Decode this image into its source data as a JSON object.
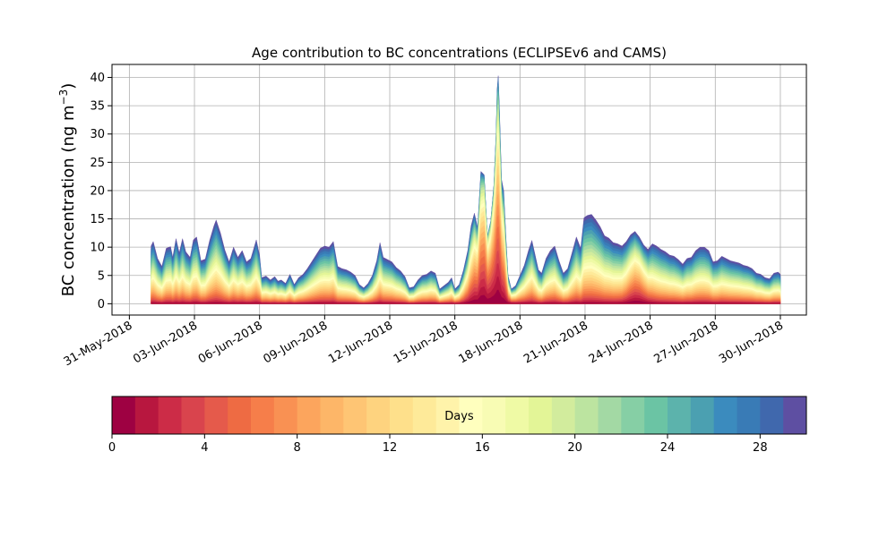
{
  "chart_data": {
    "type": "area",
    "title": "Age contribution to BC concentrations (ECLIPSEv6 and CAMS)",
    "ylabel": "BC concentration (ng m",
    "ylabel_superscript": "−3",
    "ylabel_close": ")",
    "xlabel": "",
    "xlim": [
      -0.8,
      31.2
    ],
    "ylim": [
      -2,
      42.3
    ],
    "grid": true,
    "x_ticks": [
      {
        "value": 0,
        "label": "31-May-2018"
      },
      {
        "value": 3,
        "label": "03-Jun-2018"
      },
      {
        "value": 6,
        "label": "06-Jun-2018"
      },
      {
        "value": 9,
        "label": "09-Jun-2018"
      },
      {
        "value": 12,
        "label": "12-Jun-2018"
      },
      {
        "value": 15,
        "label": "15-Jun-2018"
      },
      {
        "value": 18,
        "label": "18-Jun-2018"
      },
      {
        "value": 21,
        "label": "21-Jun-2018"
      },
      {
        "value": 24,
        "label": "24-Jun-2018"
      },
      {
        "value": 27,
        "label": "27-Jun-2018"
      },
      {
        "value": 30,
        "label": "30-Jun-2018"
      }
    ],
    "y_ticks": [
      0,
      5,
      10,
      15,
      20,
      25,
      30,
      35,
      40
    ],
    "x_unit": "days since 31-May-2018",
    "total_concentration": [
      [
        1.0,
        10.2
      ],
      [
        1.1,
        11.0
      ],
      [
        1.3,
        8.0
      ],
      [
        1.5,
        6.6
      ],
      [
        1.7,
        9.8
      ],
      [
        1.9,
        10.1
      ],
      [
        2.0,
        8.2
      ],
      [
        2.15,
        11.5
      ],
      [
        2.3,
        9.0
      ],
      [
        2.45,
        11.5
      ],
      [
        2.6,
        9.2
      ],
      [
        2.8,
        8.2
      ],
      [
        2.95,
        11.3
      ],
      [
        3.1,
        11.8
      ],
      [
        3.3,
        7.6
      ],
      [
        3.5,
        7.9
      ],
      [
        3.7,
        11.2
      ],
      [
        3.9,
        13.8
      ],
      [
        4.0,
        14.8
      ],
      [
        4.2,
        12.5
      ],
      [
        4.4,
        9.5
      ],
      [
        4.6,
        7.4
      ],
      [
        4.8,
        10.0
      ],
      [
        5.0,
        8.2
      ],
      [
        5.2,
        9.4
      ],
      [
        5.4,
        7.4
      ],
      [
        5.6,
        8.0
      ],
      [
        5.85,
        11.3
      ],
      [
        6.0,
        8.6
      ],
      [
        6.1,
        4.6
      ],
      [
        6.3,
        4.9
      ],
      [
        6.5,
        4.2
      ],
      [
        6.7,
        4.8
      ],
      [
        6.85,
        4.0
      ],
      [
        7.0,
        4.2
      ],
      [
        7.2,
        3.6
      ],
      [
        7.4,
        5.2
      ],
      [
        7.6,
        3.4
      ],
      [
        7.8,
        4.6
      ],
      [
        8.0,
        5.2
      ],
      [
        8.2,
        6.2
      ],
      [
        8.5,
        8.0
      ],
      [
        8.8,
        9.8
      ],
      [
        9.0,
        10.2
      ],
      [
        9.2,
        10.0
      ],
      [
        9.4,
        11.0
      ],
      [
        9.6,
        6.6
      ],
      [
        9.8,
        6.2
      ],
      [
        10.0,
        6.0
      ],
      [
        10.2,
        5.6
      ],
      [
        10.4,
        5.0
      ],
      [
        10.6,
        3.4
      ],
      [
        10.8,
        2.8
      ],
      [
        11.0,
        3.6
      ],
      [
        11.2,
        5.0
      ],
      [
        11.4,
        7.6
      ],
      [
        11.55,
        10.8
      ],
      [
        11.7,
        8.2
      ],
      [
        11.9,
        7.8
      ],
      [
        12.1,
        7.4
      ],
      [
        12.3,
        6.4
      ],
      [
        12.5,
        5.8
      ],
      [
        12.7,
        4.8
      ],
      [
        12.9,
        2.8
      ],
      [
        13.1,
        3.0
      ],
      [
        13.3,
        4.2
      ],
      [
        13.5,
        5.0
      ],
      [
        13.7,
        5.2
      ],
      [
        13.9,
        5.8
      ],
      [
        14.1,
        5.4
      ],
      [
        14.3,
        2.6
      ],
      [
        14.5,
        3.2
      ],
      [
        14.7,
        3.8
      ],
      [
        14.85,
        4.6
      ],
      [
        15.0,
        2.6
      ],
      [
        15.2,
        3.4
      ],
      [
        15.4,
        6.0
      ],
      [
        15.6,
        9.5
      ],
      [
        15.75,
        13.8
      ],
      [
        15.9,
        16.0
      ],
      [
        16.05,
        13.5
      ],
      [
        16.2,
        23.4
      ],
      [
        16.35,
        22.8
      ],
      [
        16.5,
        12.0
      ],
      [
        16.65,
        14.5
      ],
      [
        16.8,
        21.0
      ],
      [
        16.9,
        30.0
      ],
      [
        16.95,
        38.0
      ],
      [
        17.0,
        40.3
      ],
      [
        17.05,
        35.0
      ],
      [
        17.15,
        22.0
      ],
      [
        17.25,
        20.0
      ],
      [
        17.35,
        12.0
      ],
      [
        17.45,
        5.0
      ],
      [
        17.6,
        2.6
      ],
      [
        17.8,
        3.2
      ],
      [
        18.0,
        5.0
      ],
      [
        18.2,
        6.8
      ],
      [
        18.4,
        9.5
      ],
      [
        18.55,
        11.2
      ],
      [
        18.7,
        8.6
      ],
      [
        18.85,
        6.0
      ],
      [
        19.0,
        5.4
      ],
      [
        19.2,
        8.0
      ],
      [
        19.4,
        9.4
      ],
      [
        19.6,
        10.2
      ],
      [
        19.8,
        7.6
      ],
      [
        20.0,
        5.4
      ],
      [
        20.2,
        6.2
      ],
      [
        20.4,
        9.0
      ],
      [
        20.6,
        11.8
      ],
      [
        20.8,
        9.8
      ],
      [
        20.95,
        15.2
      ],
      [
        21.1,
        15.6
      ],
      [
        21.3,
        15.8
      ],
      [
        21.5,
        14.8
      ],
      [
        21.7,
        13.6
      ],
      [
        21.9,
        12.0
      ],
      [
        22.1,
        11.6
      ],
      [
        22.3,
        10.8
      ],
      [
        22.5,
        10.6
      ],
      [
        22.7,
        10.2
      ],
      [
        22.9,
        11.0
      ],
      [
        23.1,
        12.2
      ],
      [
        23.3,
        12.8
      ],
      [
        23.5,
        11.8
      ],
      [
        23.7,
        10.4
      ],
      [
        23.9,
        9.6
      ],
      [
        24.1,
        10.6
      ],
      [
        24.3,
        10.2
      ],
      [
        24.5,
        9.6
      ],
      [
        24.7,
        9.2
      ],
      [
        24.9,
        8.6
      ],
      [
        25.1,
        8.4
      ],
      [
        25.3,
        7.8
      ],
      [
        25.5,
        7.0
      ],
      [
        25.7,
        8.0
      ],
      [
        25.9,
        8.2
      ],
      [
        26.1,
        9.4
      ],
      [
        26.3,
        10.0
      ],
      [
        26.5,
        10.0
      ],
      [
        26.7,
        9.4
      ],
      [
        26.9,
        7.4
      ],
      [
        27.1,
        7.6
      ],
      [
        27.3,
        8.4
      ],
      [
        27.5,
        8.0
      ],
      [
        27.7,
        7.6
      ],
      [
        27.9,
        7.4
      ],
      [
        28.1,
        7.2
      ],
      [
        28.3,
        6.8
      ],
      [
        28.5,
        6.6
      ],
      [
        28.7,
        6.2
      ],
      [
        28.9,
        5.4
      ],
      [
        29.1,
        5.2
      ],
      [
        29.3,
        4.6
      ],
      [
        29.5,
        4.4
      ],
      [
        29.7,
        5.4
      ],
      [
        29.9,
        5.6
      ],
      [
        30.0,
        5.2
      ]
    ],
    "age_bands": {
      "days": [
        0,
        1,
        2,
        3,
        4,
        5,
        6,
        7,
        8,
        9,
        10,
        11,
        12,
        13,
        14,
        15,
        16,
        17,
        18,
        19,
        20,
        21,
        22,
        23,
        24,
        25,
        26,
        27,
        28,
        29,
        30
      ],
      "colors": [
        "#9e0142",
        "#b8173f",
        "#cc2c47",
        "#d9444d",
        "#e55a4b",
        "#ee6b43",
        "#f67e4a",
        "#f99153",
        "#fca55d",
        "#fdb668",
        "#fec574",
        "#fed37f",
        "#fee08b",
        "#feea99",
        "#fff3aa",
        "#ffffbe",
        "#f8fcb4",
        "#effaa5",
        "#e3f597",
        "#d2ec9d",
        "#bce4a0",
        "#a3d9a4",
        "#86cfa5",
        "#6bc4a4",
        "#5cb3ac",
        "#4ba0b1",
        "#3b8bbe",
        "#397bb6",
        "#4068ad",
        "#5e4fa2"
      ]
    },
    "colorbar": {
      "label": "Days",
      "range": [
        0,
        30
      ],
      "ticks": [
        0,
        4,
        8,
        12,
        16,
        20,
        24,
        28
      ]
    }
  }
}
